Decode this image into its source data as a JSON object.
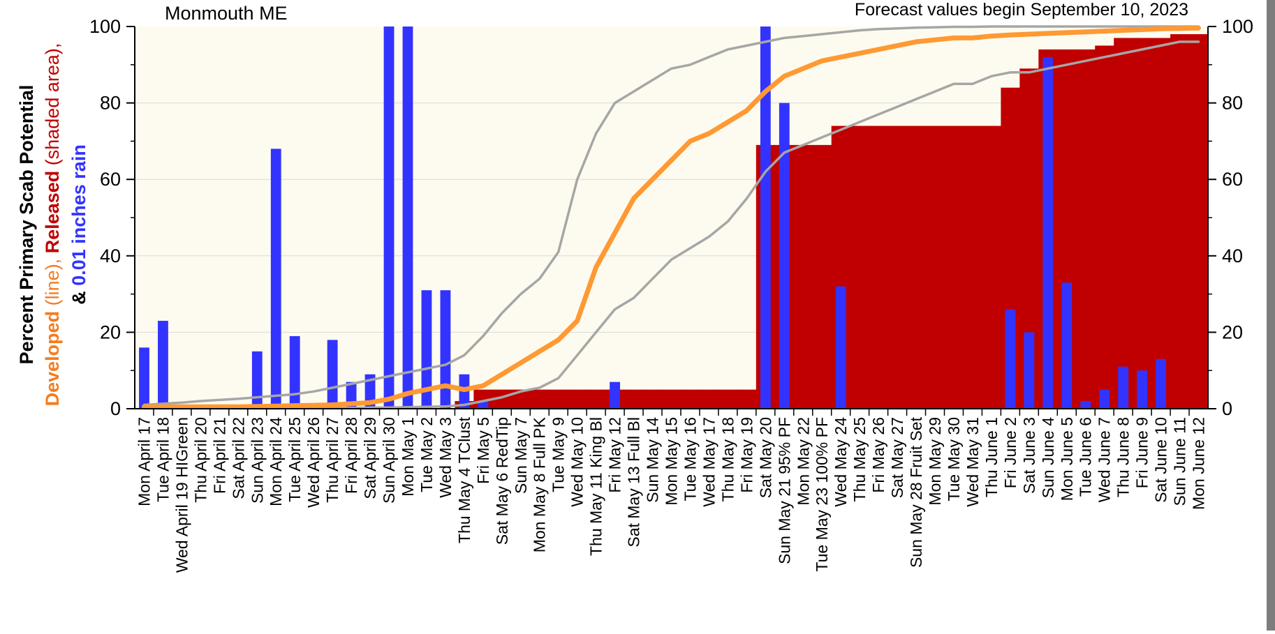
{
  "chart_data": {
    "type": "bar",
    "location": "Monmouth ME",
    "forecast_note": "Forecast values begin September 10, 2023",
    "ylabel_lines": [
      {
        "parts": [
          {
            "text": "Percent Primary Scab Potential",
            "color": "#000000"
          }
        ]
      },
      {
        "parts": [
          {
            "text": "Developed",
            "color": "#f47c20"
          },
          {
            "text": " (line),  ",
            "color": "#f47c20"
          },
          {
            "text": "Released",
            "color": "#c00000"
          },
          {
            "text": " (shaded area),",
            "color": "#c00000"
          }
        ]
      },
      {
        "parts": [
          {
            "text": "&  ",
            "color": "#000000"
          },
          {
            "text": "0.01 inches rain",
            "color": "#3333ff"
          }
        ]
      }
    ],
    "ylim": [
      0,
      100
    ],
    "yticks": [
      "0",
      "20",
      "40",
      "60",
      "80",
      "100"
    ],
    "categories": [
      "Mon  April 17",
      "Tue  April 18",
      "Wed  April 19 HIGreen",
      "Thu  April 20",
      "Fri  April 21",
      "Sat  April 22",
      "Sun  April 23",
      "Mon  April 24",
      "Tue  April 25",
      "Wed  April 26",
      "Thu  April 27",
      "Fri  April 28",
      "Sat  April 29",
      "Sun  April 30",
      "Mon  May 1",
      "Tue  May 2",
      "Wed  May 3",
      "Thu  May 4 TClust",
      "Fri  May 5",
      "Sat  May 6 RedTip",
      "Sun  May 7",
      "Mon  May 8 Full PK",
      "Tue  May 9",
      "Wed  May 10",
      "Thu  May 11 King Bl",
      "Fri  May 12",
      "Sat  May 13 Full Bl",
      "Sun  May 14",
      "Mon  May 15",
      "Tue  May 16",
      "Wed  May 17",
      "Thu  May 18",
      "Fri  May 19",
      "Sat  May 20",
      "Sun  May 21 95% PF",
      "Mon  May 22",
      "Tue  May 23 100% PF",
      "Wed  May 24",
      "Thu  May 25",
      "Fri  May 26",
      "Sat  May 27",
      "Sun  May 28 Fruit Set",
      "Mon  May 29",
      "Tue  May 30",
      "Wed  May 31",
      "Thu  June 1",
      "Fri  June 2",
      "Sat  June 3",
      "Sun  June 4",
      "Mon  June 5",
      "Tue  June 6",
      "Wed  June 7",
      "Thu  June 8",
      "Fri  June 9",
      "Sat  June 10",
      "Sun  June 11",
      "Mon  June 12"
    ],
    "series": [
      {
        "name": "0.01 inches rain",
        "kind": "bar",
        "color": "#3333ff",
        "values": [
          16,
          23,
          0,
          0,
          0,
          0,
          15,
          68,
          19,
          0,
          18,
          7,
          9,
          100,
          100,
          31,
          31,
          9,
          2,
          0,
          0,
          0,
          0,
          0,
          0,
          7,
          0,
          0,
          0,
          0,
          0,
          0,
          0,
          100,
          80,
          0,
          0,
          32,
          0,
          0,
          0,
          0,
          0,
          0,
          0,
          0,
          26,
          20,
          92,
          33,
          2,
          5,
          11,
          10,
          13,
          0,
          0
        ]
      },
      {
        "name": "Released",
        "kind": "area",
        "color": "#c00000",
        "values": [
          0,
          0,
          0,
          0,
          0,
          0,
          0,
          0,
          0,
          0,
          0,
          0,
          0,
          0,
          0,
          0,
          0,
          2,
          5,
          5,
          5,
          5,
          5,
          5,
          5,
          5,
          5,
          5,
          5,
          5,
          5,
          5,
          5,
          69,
          69,
          69,
          69,
          74,
          74,
          74,
          74,
          74,
          74,
          74,
          74,
          74,
          84,
          89,
          94,
          94,
          94,
          95,
          97,
          97,
          97,
          98,
          98
        ]
      },
      {
        "name": "Developed",
        "kind": "line",
        "color": "#ff9933",
        "values": [
          0.5,
          0.5,
          0.5,
          0.5,
          0.5,
          0.5,
          0.6,
          0.7,
          0.8,
          0.9,
          1.0,
          1.3,
          1.6,
          2.5,
          4.0,
          5.0,
          6.0,
          5.0,
          6.0,
          9.0,
          12.0,
          15.0,
          18.0,
          23.0,
          37.0,
          46.0,
          55.0,
          60.0,
          65.0,
          70.0,
          72.0,
          75.0,
          78.0,
          83.0,
          87.0,
          89.0,
          91.0,
          92.0,
          93.0,
          94.0,
          95.0,
          96.0,
          96.5,
          97.0,
          97.0,
          97.5,
          97.8,
          98.0,
          98.2,
          98.4,
          98.6,
          98.8,
          99.0,
          99.2,
          99.4,
          99.5,
          99.6
        ]
      },
      {
        "name": "Upper bound",
        "kind": "line",
        "color": "#a6a6a6",
        "values": [
          1,
          1.3,
          1.6,
          2.0,
          2.3,
          2.6,
          3.0,
          3.4,
          3.8,
          4.5,
          5.5,
          6.5,
          7.5,
          8.5,
          9.5,
          10.5,
          11.5,
          14,
          19,
          25,
          30,
          34,
          41,
          60,
          72,
          80,
          83,
          86,
          89,
          90,
          92,
          94,
          95,
          96,
          97,
          97.5,
          98,
          98.5,
          99,
          99.3,
          99.5,
          99.7,
          99.8,
          99.9,
          99.9,
          100,
          100,
          100,
          100,
          100,
          100,
          100,
          100,
          100,
          100,
          100,
          100
        ]
      },
      {
        "name": "Lower bound",
        "kind": "line",
        "color": "#a6a6a6",
        "values": [
          0.1,
          0.1,
          0.1,
          0.1,
          0.1,
          0.1,
          0.1,
          0.1,
          0.2,
          0.2,
          0.2,
          0.2,
          0.3,
          0.3,
          0.4,
          0.5,
          0.6,
          1.0,
          2.0,
          3.0,
          4.5,
          5.5,
          8.0,
          14,
          20,
          26,
          29,
          34,
          39,
          42,
          45,
          49,
          55,
          62,
          67,
          69,
          71,
          73,
          75,
          77,
          79,
          81,
          83,
          85,
          85,
          87,
          88,
          88,
          89,
          90,
          91,
          92,
          93,
          94,
          95,
          96,
          96
        ]
      }
    ],
    "grid": true,
    "plot_background": "#fdfbef"
  }
}
